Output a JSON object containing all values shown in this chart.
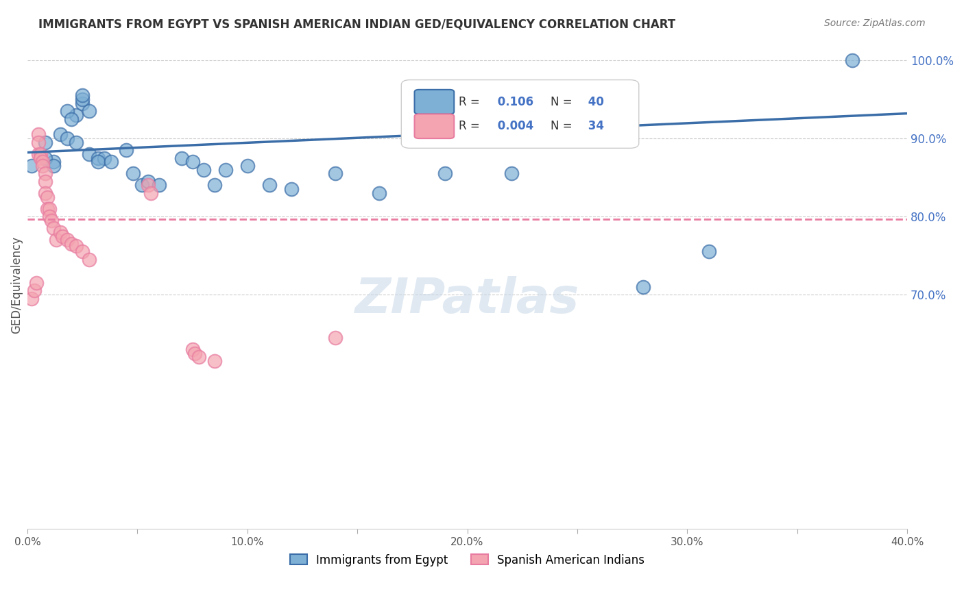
{
  "title": "IMMIGRANTS FROM EGYPT VS SPANISH AMERICAN INDIAN GED/EQUIVALENCY CORRELATION CHART",
  "source": "Source: ZipAtlas.com",
  "ylabel": "GED/Equivalency",
  "legend_label_blue": "Immigrants from Egypt",
  "legend_label_pink": "Spanish American Indians",
  "R_blue": 0.106,
  "N_blue": 40,
  "R_pink": 0.004,
  "N_pink": 34,
  "xlim": [
    0.0,
    0.4
  ],
  "ylim": [
    0.4,
    1.025
  ],
  "ytick_vals": [
    0.7,
    0.8,
    0.9,
    1.0
  ],
  "ytick_labels": [
    "70.0%",
    "80.0%",
    "90.0%",
    "100.0%"
  ],
  "xticks": [
    0.0,
    0.05,
    0.1,
    0.15,
    0.2,
    0.25,
    0.3,
    0.35,
    0.4
  ],
  "xtick_labels": [
    "0.0%",
    "",
    "10.0%",
    "",
    "20.0%",
    "",
    "30.0%",
    "",
    "40.0%"
  ],
  "color_blue": "#7EB0D5",
  "color_pink": "#F4A4B0",
  "color_blue_line": "#3B6EA8",
  "color_pink_line": "#E87BA0",
  "background_color": "#FFFFFF",
  "blue_scatter_x": [
    0.002,
    0.012,
    0.008,
    0.012,
    0.008,
    0.015,
    0.018,
    0.022,
    0.018,
    0.02,
    0.022,
    0.025,
    0.028,
    0.025,
    0.025,
    0.028,
    0.032,
    0.035,
    0.032,
    0.038,
    0.045,
    0.048,
    0.052,
    0.055,
    0.06,
    0.07,
    0.075,
    0.08,
    0.085,
    0.09,
    0.1,
    0.11,
    0.12,
    0.14,
    0.16,
    0.19,
    0.22,
    0.28,
    0.31,
    0.375
  ],
  "blue_scatter_y": [
    0.865,
    0.87,
    0.875,
    0.865,
    0.895,
    0.905,
    0.9,
    0.93,
    0.935,
    0.925,
    0.895,
    0.945,
    0.935,
    0.95,
    0.955,
    0.88,
    0.875,
    0.875,
    0.87,
    0.87,
    0.885,
    0.855,
    0.84,
    0.845,
    0.84,
    0.875,
    0.87,
    0.86,
    0.84,
    0.86,
    0.865,
    0.84,
    0.835,
    0.855,
    0.83,
    0.855,
    0.855,
    0.71,
    0.755,
    1.0
  ],
  "pink_scatter_x": [
    0.002,
    0.003,
    0.004,
    0.005,
    0.005,
    0.005,
    0.006,
    0.006,
    0.007,
    0.007,
    0.008,
    0.008,
    0.008,
    0.009,
    0.009,
    0.01,
    0.01,
    0.011,
    0.012,
    0.013,
    0.015,
    0.016,
    0.018,
    0.02,
    0.022,
    0.025,
    0.028,
    0.055,
    0.056,
    0.075,
    0.076,
    0.078,
    0.085,
    0.14
  ],
  "pink_scatter_y": [
    0.695,
    0.705,
    0.715,
    0.905,
    0.88,
    0.895,
    0.88,
    0.875,
    0.87,
    0.865,
    0.855,
    0.845,
    0.83,
    0.825,
    0.81,
    0.81,
    0.8,
    0.795,
    0.785,
    0.77,
    0.78,
    0.775,
    0.77,
    0.765,
    0.762,
    0.755,
    0.745,
    0.84,
    0.83,
    0.63,
    0.625,
    0.62,
    0.615,
    0.645
  ],
  "blue_trend_x": [
    0.0,
    0.4
  ],
  "blue_trend_y": [
    0.882,
    0.932
  ],
  "pink_trend_x": [
    0.0,
    0.4
  ],
  "pink_trend_y": [
    0.797,
    0.797
  ],
  "watermark": "ZIPatlas"
}
